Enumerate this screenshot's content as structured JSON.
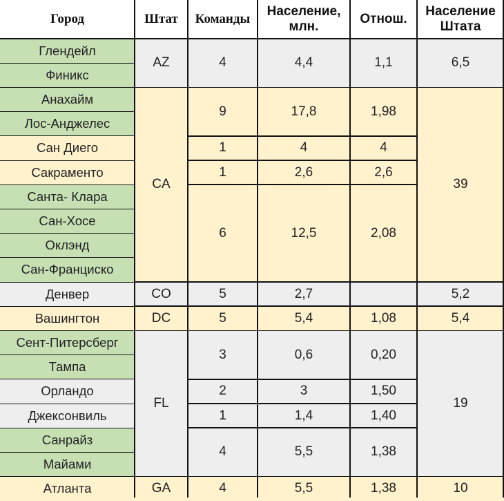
{
  "colors": {
    "header": "#ffffff",
    "green": "#c6e0b4",
    "orange": "#fff2cc",
    "gray": "#eeeeee",
    "white": "#ffffff",
    "border": "#111111"
  },
  "headers": [
    "Город",
    "Штат",
    "Команды",
    "Население, млн.",
    "Отнош.",
    "Население Штата"
  ],
  "cities": [
    {
      "name": "Глендейл",
      "bg": "green"
    },
    {
      "name": "Финикс",
      "bg": "green"
    },
    {
      "name": "Анахайм",
      "bg": "green"
    },
    {
      "name": "Лос-Анджелес",
      "bg": "green"
    },
    {
      "name": "Сан Диего",
      "bg": "orange"
    },
    {
      "name": "Сакраменто",
      "bg": "orange"
    },
    {
      "name": "Санта- Клара",
      "bg": "green"
    },
    {
      "name": "Сан-Хосе",
      "bg": "green"
    },
    {
      "name": "Оклэнд",
      "bg": "green"
    },
    {
      "name": "Сан-Франциско",
      "bg": "green"
    },
    {
      "name": "Денвер",
      "bg": "gray"
    },
    {
      "name": "Вашингтон",
      "bg": "orange"
    },
    {
      "name": "Сент-Питерсберг",
      "bg": "green"
    },
    {
      "name": "Тампа",
      "bg": "green"
    },
    {
      "name": "Орландо",
      "bg": "gray"
    },
    {
      "name": "Джексонвиль",
      "bg": "gray"
    },
    {
      "name": "Санрайз",
      "bg": "green"
    },
    {
      "name": "Майами",
      "bg": "green"
    },
    {
      "name": "Атланта",
      "bg": "orange"
    }
  ],
  "states": [
    {
      "name": "AZ",
      "row": 0,
      "span": 2,
      "bg": "gray"
    },
    {
      "name": "CA",
      "row": 2,
      "span": 8,
      "bg": "orange"
    },
    {
      "name": "CO",
      "row": 10,
      "span": 1,
      "bg": "gray"
    },
    {
      "name": "DC",
      "row": 11,
      "span": 1,
      "bg": "orange"
    },
    {
      "name": "FL",
      "row": 12,
      "span": 6,
      "bg": "gray"
    },
    {
      "name": "GA",
      "row": 18,
      "span": 1,
      "bg": "orange"
    }
  ],
  "teams": [
    {
      "teams": "4",
      "population": "4,4",
      "ratio": "1,1",
      "row": 0,
      "span": 2,
      "bg": "gray"
    },
    {
      "teams": "9",
      "population": "17,8",
      "ratio": "1,98",
      "row": 2,
      "span": 2,
      "bg": "orange"
    },
    {
      "teams": "1",
      "population": "4",
      "ratio": "4",
      "row": 4,
      "span": 1,
      "bg": "orange"
    },
    {
      "teams": "1",
      "population": "2,6",
      "ratio": "2,6",
      "row": 5,
      "span": 1,
      "bg": "orange"
    },
    {
      "teams": "6",
      "population": "12,5",
      "ratio": "2,08",
      "row": 6,
      "span": 4,
      "bg": "orange"
    },
    {
      "teams": "5",
      "population": "2,7",
      "ratio": "",
      "row": 10,
      "span": 1,
      "bg": "gray"
    },
    {
      "teams": "5",
      "population": "5,4",
      "ratio": "1,08",
      "row": 11,
      "span": 1,
      "bg": "orange"
    },
    {
      "teams": "3",
      "population": "0,6",
      "ratio": "0,20",
      "row": 12,
      "span": 2,
      "bg": "gray"
    },
    {
      "teams": "2",
      "population": "3",
      "ratio": "1,50",
      "row": 14,
      "span": 1,
      "bg": "gray"
    },
    {
      "teams": "1",
      "population": "1,4",
      "ratio": "1,40",
      "row": 15,
      "span": 1,
      "bg": "gray"
    },
    {
      "teams": "4",
      "population": "5,5",
      "ratio": "1,38",
      "row": 16,
      "span": 2,
      "bg": "gray"
    },
    {
      "teams": "4",
      "population": "5,5",
      "ratio": "1,38",
      "row": 18,
      "span": 1,
      "bg": "orange"
    }
  ],
  "state_population": [
    {
      "value": "6,5",
      "row": 0,
      "span": 2,
      "bg": "gray"
    },
    {
      "value": "39",
      "row": 2,
      "span": 8,
      "bg": "orange"
    },
    {
      "value": "5,2",
      "row": 10,
      "span": 1,
      "bg": "gray"
    },
    {
      "value": "5,4",
      "row": 11,
      "span": 1,
      "bg": "orange"
    },
    {
      "value": "19",
      "row": 12,
      "span": 6,
      "bg": "gray"
    },
    {
      "value": "10",
      "row": 18,
      "span": 1,
      "bg": "orange"
    }
  ]
}
